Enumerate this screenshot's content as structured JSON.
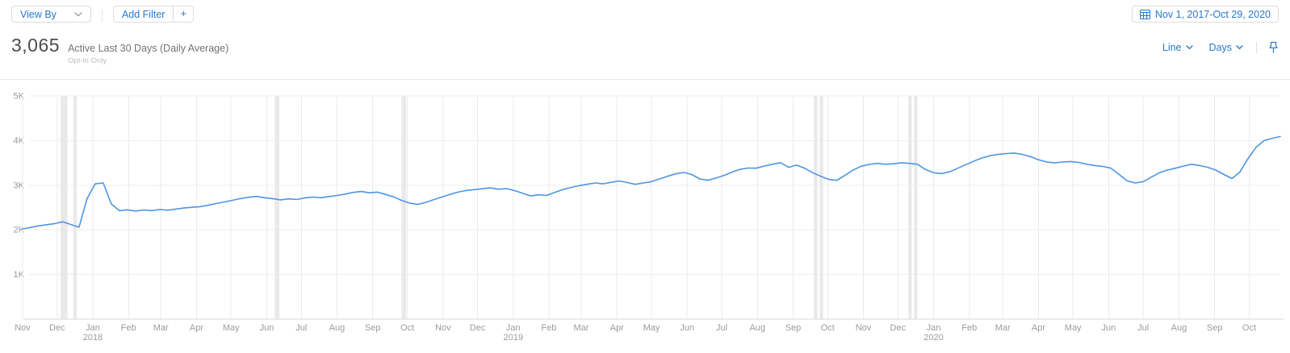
{
  "toolbar": {
    "view_by": {
      "label": "View By"
    },
    "add_filter": {
      "label": "Add Filter",
      "plus": "+"
    },
    "date_range": {
      "label": "Nov 1, 2017-Oct 29, 2020"
    }
  },
  "metric": {
    "value": "3,065",
    "label": "Active Last 30 Days (Daily Average)",
    "sublabel": "Opt-in Only"
  },
  "chart_controls": {
    "chart_type": {
      "label": "Line"
    },
    "interval": {
      "label": "Days"
    }
  },
  "colors": {
    "accent_blue": "#2678d0",
    "line_blue": "#4e95e3",
    "axis_text": "#9b9b9b",
    "h_gridline": "#efefef",
    "v_gridline": "#ebebeb",
    "annotation_band": "#e9e9e9",
    "axis_line": "#d8d8d8"
  },
  "chart_data": {
    "type": "line",
    "title": "Active Last 30 Days (Daily Average)",
    "ylim": [
      0,
      5000
    ],
    "y_ticks": [
      "1K",
      "2K",
      "3K",
      "4K",
      "5K"
    ],
    "grid": true,
    "legend": "none",
    "total_days": 1093,
    "x_months": [
      {
        "label": "Nov",
        "day": 0
      },
      {
        "label": "Dec",
        "day": 30
      },
      {
        "label": "Jan",
        "year": "2018",
        "day": 61
      },
      {
        "label": "Feb",
        "day": 92
      },
      {
        "label": "Mar",
        "day": 120
      },
      {
        "label": "Apr",
        "day": 151
      },
      {
        "label": "May",
        "day": 181
      },
      {
        "label": "Jun",
        "day": 212
      },
      {
        "label": "Jul",
        "day": 242
      },
      {
        "label": "Aug",
        "day": 273
      },
      {
        "label": "Sep",
        "day": 304
      },
      {
        "label": "Oct",
        "day": 334
      },
      {
        "label": "Nov",
        "day": 365
      },
      {
        "label": "Dec",
        "day": 395
      },
      {
        "label": "Jan",
        "year": "2019",
        "day": 426
      },
      {
        "label": "Feb",
        "day": 457
      },
      {
        "label": "Mar",
        "day": 485
      },
      {
        "label": "Apr",
        "day": 516
      },
      {
        "label": "May",
        "day": 546
      },
      {
        "label": "Jun",
        "day": 577
      },
      {
        "label": "Jul",
        "day": 607
      },
      {
        "label": "Aug",
        "day": 638
      },
      {
        "label": "Sep",
        "day": 669
      },
      {
        "label": "Oct",
        "day": 699
      },
      {
        "label": "Nov",
        "day": 730
      },
      {
        "label": "Dec",
        "day": 760
      },
      {
        "label": "Jan",
        "year": "2020",
        "day": 791
      },
      {
        "label": "Feb",
        "day": 822
      },
      {
        "label": "Mar",
        "day": 851
      },
      {
        "label": "Apr",
        "day": 882
      },
      {
        "label": "May",
        "day": 912
      },
      {
        "label": "Jun",
        "day": 943
      },
      {
        "label": "Jul",
        "day": 973
      },
      {
        "label": "Aug",
        "day": 1004
      },
      {
        "label": "Sep",
        "day": 1035
      },
      {
        "label": "Oct",
        "day": 1065
      }
    ],
    "annotation_bands_days": [
      {
        "day": 33,
        "span": 6
      },
      {
        "day": 44,
        "span": 3
      },
      {
        "day": 219,
        "span": 4
      },
      {
        "day": 329,
        "span": 4
      },
      {
        "day": 687,
        "span": 3
      },
      {
        "day": 692,
        "span": 3
      },
      {
        "day": 769,
        "span": 3
      },
      {
        "day": 774,
        "span": 3
      }
    ],
    "series": [
      {
        "name": "Active Last 30 Days (Daily Average)",
        "sampling_days": 7,
        "values": [
          2020,
          2055,
          2090,
          2115,
          2140,
          2180,
          2120,
          2060,
          2700,
          3030,
          3050,
          2580,
          2430,
          2450,
          2420,
          2445,
          2430,
          2455,
          2440,
          2465,
          2490,
          2505,
          2520,
          2550,
          2590,
          2625,
          2660,
          2700,
          2730,
          2750,
          2720,
          2700,
          2670,
          2695,
          2680,
          2715,
          2735,
          2720,
          2745,
          2770,
          2800,
          2840,
          2860,
          2830,
          2845,
          2795,
          2740,
          2660,
          2600,
          2570,
          2615,
          2675,
          2735,
          2795,
          2845,
          2880,
          2900,
          2920,
          2940,
          2910,
          2925,
          2880,
          2820,
          2760,
          2785,
          2770,
          2840,
          2900,
          2950,
          2990,
          3020,
          3050,
          3030,
          3065,
          3095,
          3060,
          3020,
          3050,
          3080,
          3140,
          3200,
          3255,
          3285,
          3240,
          3140,
          3110,
          3160,
          3220,
          3295,
          3355,
          3385,
          3380,
          3430,
          3470,
          3505,
          3400,
          3450,
          3380,
          3280,
          3200,
          3130,
          3110,
          3220,
          3340,
          3425,
          3465,
          3490,
          3470,
          3480,
          3500,
          3490,
          3470,
          3350,
          3280,
          3260,
          3300,
          3380,
          3460,
          3540,
          3610,
          3660,
          3690,
          3710,
          3720,
          3690,
          3640,
          3570,
          3520,
          3500,
          3520,
          3530,
          3510,
          3470,
          3440,
          3420,
          3380,
          3240,
          3100,
          3050,
          3080,
          3180,
          3280,
          3340,
          3380,
          3430,
          3470,
          3440,
          3400,
          3340,
          3240,
          3150,
          3300,
          3600,
          3850,
          4000,
          4050,
          4090
        ]
      }
    ]
  }
}
